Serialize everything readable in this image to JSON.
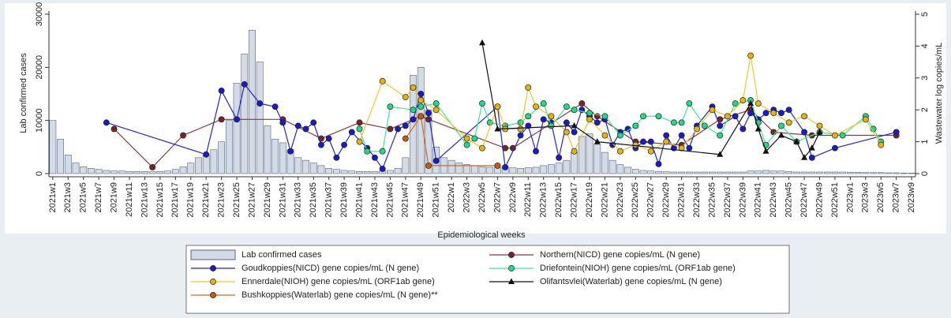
{
  "chart_data": {
    "type": "combo",
    "xlabel": "Epidemiological weeks",
    "ylabel": "Lab confirmed cases",
    "y2label": "Wastewater log copies/mL",
    "ylim": [
      0,
      30000
    ],
    "yticks": [
      0,
      10000,
      20000,
      30000
    ],
    "y2lim": [
      0,
      5
    ],
    "y2ticks": [
      0,
      1,
      2,
      3,
      4,
      5
    ],
    "legend": "bottom",
    "categories": [
      "2021w1",
      null,
      "2021w3",
      null,
      "2021w5",
      null,
      "2021w7",
      null,
      "2021w9",
      null,
      "2021w11",
      null,
      "2021w13",
      null,
      "2021w15",
      null,
      "2021w17",
      null,
      "2021w19",
      null,
      "2021w21",
      null,
      "2021w23",
      null,
      "2021w25",
      null,
      "2021w27",
      null,
      "2021w29",
      null,
      "2021w31",
      null,
      "2021w33",
      null,
      "2021w35",
      null,
      "2021w37",
      null,
      "2021w39",
      null,
      "2021w41",
      null,
      "2021w43",
      null,
      "2021w45",
      null,
      "2021w47",
      null,
      "2021w49",
      null,
      "2021w51",
      null,
      "2022w1",
      null,
      "2022w3",
      null,
      "2022w5",
      null,
      "2022w7",
      null,
      "2022w9",
      null,
      "2022w11",
      null,
      "2022w13",
      null,
      "2022w15",
      null,
      "2022w17",
      null,
      "2022w19",
      null,
      "2022w21",
      null,
      "2022w23",
      null,
      "2022w25",
      null,
      "2022w27",
      null,
      "2022w29",
      null,
      "2022w31",
      null,
      "2022w33",
      null,
      "2022w35",
      null,
      "2022w37",
      null,
      "2022w39",
      null,
      "2022w41",
      null,
      "2022w43",
      null,
      "2022w45",
      null,
      "2022w47",
      null,
      "2022w49",
      null,
      "2022w51",
      null,
      "2023w1",
      null,
      "2023w3",
      null,
      "2023w5",
      null,
      "2023w7",
      null,
      "2023w9"
    ],
    "series": [
      {
        "name": "Lab confirmed cases",
        "type": "bar",
        "color": "#d3dbe6",
        "edge": "#55657d",
        "values": [
          10000,
          6500,
          3500,
          2000,
          1300,
          1000,
          800,
          600,
          500,
          500,
          400,
          400,
          400,
          350,
          400,
          500,
          800,
          1300,
          2000,
          3000,
          3500,
          4500,
          6000,
          10000,
          17000,
          22500,
          27000,
          21000,
          9000,
          6500,
          5800,
          4500,
          3000,
          2500,
          2000,
          1500,
          1000,
          800,
          600,
          500,
          400,
          400,
          400,
          500,
          600,
          1000,
          3000,
          18500,
          20000,
          12000,
          5000,
          3000,
          2500,
          2000,
          1700,
          1500,
          1300,
          1200,
          1200,
          1300,
          1100,
          1000,
          1100,
          1200,
          1500,
          1700,
          2000,
          2500,
          4000,
          7000,
          7500,
          5500,
          4000,
          2500,
          1700,
          1200,
          800,
          600,
          500,
          400,
          350,
          300,
          300,
          300,
          300,
          300,
          300,
          300,
          300,
          300,
          300,
          500,
          500,
          600,
          500,
          500,
          400,
          300,
          300,
          300,
          300,
          300,
          300,
          300,
          250,
          250,
          200,
          200,
          200,
          150,
          150,
          100,
          100
        ]
      },
      {
        "name": "Northern(NICD) gene copies/mL (N gene)",
        "type": "line",
        "axis": "y2",
        "color": "#8b3a3a",
        "marker_color": "#7a2424",
        "marker": "circle",
        "values": [
          null,
          null,
          null,
          null,
          null,
          null,
          null,
          null,
          1.4,
          null,
          null,
          null,
          null,
          0.2,
          null,
          null,
          null,
          1.2,
          null,
          null,
          null,
          null,
          1.7,
          null,
          null,
          null,
          null,
          null,
          null,
          null,
          1.7,
          null,
          null,
          null,
          null,
          1.1,
          null,
          null,
          null,
          null,
          1.6,
          null,
          null,
          null,
          1.4,
          null,
          null,
          null,
          1.8,
          1.7,
          null,
          null,
          null,
          null,
          null,
          null,
          null,
          null,
          null,
          0.8,
          0.8,
          null,
          null,
          null,
          null,
          null,
          null,
          null,
          null,
          2.2,
          null,
          1.8,
          null,
          null,
          null,
          null,
          1.0,
          null,
          null,
          null,
          null,
          null,
          0.9,
          null,
          null,
          null,
          null,
          1.7,
          null,
          null,
          null,
          2.0,
          null,
          null,
          1.3,
          null,
          null,
          null,
          null,
          1.2,
          null,
          null,
          null,
          null,
          null,
          null,
          null,
          null,
          null,
          null,
          1.2,
          null,
          null
        ]
      },
      {
        "name": "Goudkoppies(NICD) gene copies/mL (N gene)",
        "type": "line",
        "axis": "y2",
        "color": "#2222d8",
        "marker_color": "#1a1acc",
        "marker": "circle",
        "values": [
          null,
          null,
          null,
          null,
          null,
          null,
          null,
          1.6,
          null,
          null,
          null,
          null,
          null,
          null,
          null,
          null,
          null,
          null,
          null,
          null,
          0.6,
          null,
          2.6,
          null,
          1.7,
          2.8,
          null,
          2.2,
          null,
          2.1,
          1.6,
          0.7,
          1.5,
          1.4,
          1.6,
          0.9,
          1.1,
          0.5,
          0.9,
          1.3,
          null,
          0.8,
          0.5,
          0.15,
          null,
          1.4,
          1.5,
          1.7,
          2.5,
          1.9,
          0.4,
          null,
          null,
          null,
          null,
          null,
          null,
          null,
          2.1,
          0.2,
          null,
          1.2,
          1.5,
          0.7,
          1.7,
          1.6,
          0.5,
          1.6,
          1.3,
          2.0,
          1.8,
          1.6,
          1.7,
          0.9,
          1.3,
          1.4,
          0.8,
          1.0,
          1.0,
          0.3,
          1.2,
          0.8,
          1.2,
          0.8,
          1.5,
          null,
          2.1,
          1.5,
          null,
          1.8,
          1.4,
          1.9,
          1.7,
          1.9,
          2.0,
          1.9,
          2.0,
          null,
          1.3,
          0.5,
          null,
          null,
          0.8,
          null,
          null,
          null,
          null,
          null,
          null,
          null,
          1.3,
          null,
          null
        ]
      },
      {
        "name": "Driefontein(NIOH) gene copies/mL (ORF1ab gene)",
        "type": "line",
        "axis": "y2",
        "color": "#3ee89a",
        "marker_color": "#22d985",
        "marker": "circle",
        "values": [
          null,
          null,
          null,
          null,
          null,
          null,
          null,
          null,
          null,
          null,
          null,
          null,
          null,
          null,
          null,
          null,
          null,
          null,
          null,
          null,
          null,
          null,
          null,
          null,
          null,
          null,
          null,
          null,
          null,
          null,
          null,
          null,
          null,
          null,
          null,
          null,
          null,
          null,
          null,
          null,
          1.4,
          0.7,
          null,
          0.7,
          2.1,
          null,
          null,
          2.0,
          2.1,
          null,
          2.2,
          null,
          null,
          null,
          0.9,
          1.1,
          2.2,
          1.6,
          null,
          1.5,
          null,
          1.6,
          1.8,
          null,
          2.2,
          1.5,
          null,
          2.1,
          2.0,
          null,
          1.9,
          null,
          1.8,
          null,
          1.2,
          null,
          1.5,
          1.8,
          null,
          1.8,
          null,
          1.6,
          1.6,
          2.2,
          null,
          1.5,
          null,
          1.2,
          null,
          2.2,
          null,
          2.3,
          1.6,
          0.9,
          null,
          1.5,
          null,
          1.0,
          null,
          null,
          1.3,
          null,
          null,
          1.2,
          null,
          null,
          1.8,
          1.4,
          1.0,
          null,
          null,
          null,
          null
        ]
      },
      {
        "name": "Ennerdale(NIOH) gene copies/mL (ORF1ab gene)",
        "type": "line",
        "axis": "y2",
        "color": "#f2c62a",
        "marker_color": "#e4b30c",
        "marker": "circle",
        "values": [
          null,
          null,
          null,
          null,
          null,
          null,
          null,
          null,
          null,
          null,
          null,
          null,
          null,
          null,
          null,
          null,
          null,
          null,
          null,
          null,
          null,
          null,
          null,
          null,
          null,
          null,
          null,
          null,
          null,
          null,
          null,
          null,
          null,
          null,
          null,
          null,
          null,
          null,
          null,
          null,
          1.0,
          null,
          null,
          2.9,
          null,
          null,
          2.4,
          2.7,
          2.3,
          null,
          2.0,
          null,
          null,
          null,
          1.1,
          null,
          0.8,
          null,
          2.1,
          1.4,
          null,
          1.4,
          2.7,
          2.1,
          null,
          1.8,
          null,
          1.3,
          0.7,
          null,
          1.7,
          null,
          1.2,
          null,
          0.7,
          null,
          0.9,
          null,
          0.7,
          null,
          1.0,
          null,
          0.8,
          null,
          1.4,
          null,
          2.0,
          null,
          1.8,
          null,
          2.3,
          3.7,
          2.2,
          null,
          1.9,
          null,
          1.6,
          null,
          1.8,
          null,
          1.5,
          null,
          1.2,
          null,
          null,
          null,
          1.7,
          null,
          0.9,
          null,
          null,
          null,
          null
        ]
      },
      {
        "name": "Olifantsvlei(Waterlab) gene copies/mL (N gene)",
        "type": "line",
        "axis": "y2",
        "color": "#111111",
        "marker_color": "#111111",
        "marker": "triangle",
        "values": [
          null,
          null,
          null,
          null,
          null,
          null,
          null,
          null,
          null,
          null,
          null,
          null,
          null,
          null,
          null,
          null,
          null,
          null,
          null,
          null,
          null,
          null,
          null,
          null,
          null,
          null,
          null,
          null,
          null,
          null,
          null,
          null,
          null,
          null,
          null,
          null,
          null,
          null,
          null,
          null,
          null,
          null,
          null,
          null,
          null,
          null,
          null,
          null,
          null,
          null,
          null,
          null,
          null,
          null,
          null,
          null,
          4.1,
          null,
          1.4,
          null,
          null,
          null,
          null,
          null,
          null,
          null,
          null,
          null,
          1.5,
          null,
          null,
          1.0,
          null,
          null,
          null,
          null,
          null,
          null,
          null,
          null,
          null,
          null,
          null,
          null,
          null,
          null,
          null,
          0.6,
          null,
          null,
          null,
          2.2,
          1.4,
          0.7,
          null,
          1.2,
          null,
          1.0,
          0.5,
          0.8,
          1.3,
          null,
          null,
          null,
          null,
          null,
          null,
          null,
          null,
          null,
          null,
          null,
          null
        ]
      },
      {
        "name": "Bushkoppies(Waterlab) gene copies/mL (N gene)**",
        "type": "line",
        "axis": "y2",
        "color": "#d2691e",
        "marker_color": "#c85a10",
        "marker": "circle",
        "values": [
          null,
          null,
          null,
          null,
          null,
          null,
          null,
          null,
          null,
          null,
          null,
          null,
          null,
          null,
          null,
          null,
          null,
          null,
          null,
          null,
          null,
          null,
          null,
          null,
          null,
          null,
          null,
          null,
          null,
          null,
          null,
          null,
          null,
          null,
          null,
          null,
          null,
          null,
          null,
          null,
          null,
          null,
          null,
          null,
          null,
          null,
          1.1,
          null,
          1.8,
          0.25,
          null,
          null,
          null,
          null,
          null,
          null,
          null,
          null,
          0.25,
          null,
          null,
          null,
          null,
          null,
          null,
          null,
          null,
          null,
          null,
          null,
          null,
          null,
          null,
          null,
          null,
          null,
          null,
          null,
          null,
          null,
          null,
          null,
          null,
          null,
          null,
          null,
          null,
          null,
          null,
          null,
          null,
          null,
          null,
          null,
          null,
          null,
          null,
          null,
          null,
          null,
          null,
          null,
          null,
          null,
          null,
          null,
          null,
          null,
          null,
          null,
          null,
          null,
          null
        ]
      }
    ]
  }
}
